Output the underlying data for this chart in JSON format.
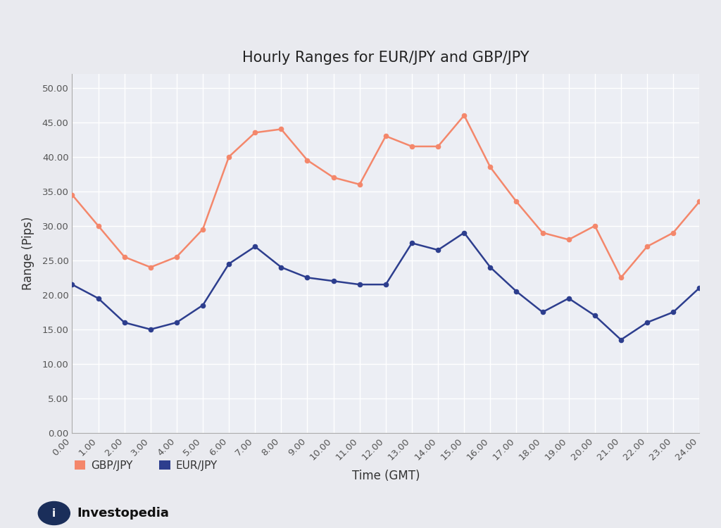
{
  "title": "Hourly Ranges for EUR/JPY and GBP/JPY",
  "xlabel": "Time (GMT)",
  "ylabel": "Range (Pips)",
  "background_color": "#e9eaef",
  "plot_bg_color": "#eceef4",
  "grid_color": "#ffffff",
  "x_ticks": [
    0,
    1,
    2,
    3,
    4,
    5,
    6,
    7,
    8,
    9,
    10,
    11,
    12,
    13,
    14,
    15,
    16,
    17,
    18,
    19,
    20,
    21,
    22,
    23,
    24
  ],
  "x_tick_labels": [
    "0.00",
    "1.00",
    "2.00",
    "3.00",
    "4.00",
    "5.00",
    "6.00",
    "7.00",
    "8.00",
    "9.00",
    "10.00",
    "11.00",
    "12.00",
    "13.00",
    "14.00",
    "15.00",
    "16.00",
    "17.00",
    "18.00",
    "19.00",
    "20.00",
    "21.00",
    "22.00",
    "23.00",
    "24.00"
  ],
  "y_ticks": [
    0,
    5,
    10,
    15,
    20,
    25,
    30,
    35,
    40,
    45,
    50
  ],
  "y_tick_labels": [
    "0.00",
    "5.00",
    "10.00",
    "15.00",
    "20.00",
    "25.00",
    "30.00",
    "35.00",
    "40.00",
    "45.00",
    "50.00"
  ],
  "ylim": [
    0,
    52
  ],
  "xlim": [
    0,
    24
  ],
  "gbpjpy_color": "#f4876b",
  "eurjpy_color": "#2d3e8e",
  "gbpjpy_values": [
    34.5,
    30.0,
    25.5,
    24.0,
    25.5,
    29.5,
    40.0,
    43.5,
    44.0,
    39.5,
    37.0,
    36.0,
    43.0,
    41.5,
    41.5,
    46.0,
    38.5,
    33.5,
    29.0,
    28.0,
    30.0,
    22.5,
    27.0,
    29.0,
    33.5
  ],
  "eurjpy_values": [
    21.5,
    19.5,
    16.0,
    15.0,
    16.0,
    18.5,
    24.5,
    27.0,
    24.0,
    22.5,
    22.0,
    21.5,
    21.5,
    27.5,
    26.5,
    29.0,
    24.0,
    20.5,
    17.5,
    19.5,
    17.0,
    13.5,
    16.0,
    17.5,
    21.0
  ],
  "legend_gbp_label": "GBP/JPY",
  "legend_eur_label": "EUR/JPY",
  "title_fontsize": 15,
  "axis_label_fontsize": 12,
  "tick_fontsize": 9.5,
  "legend_fontsize": 11,
  "marker_size": 4.5,
  "line_width": 1.8
}
